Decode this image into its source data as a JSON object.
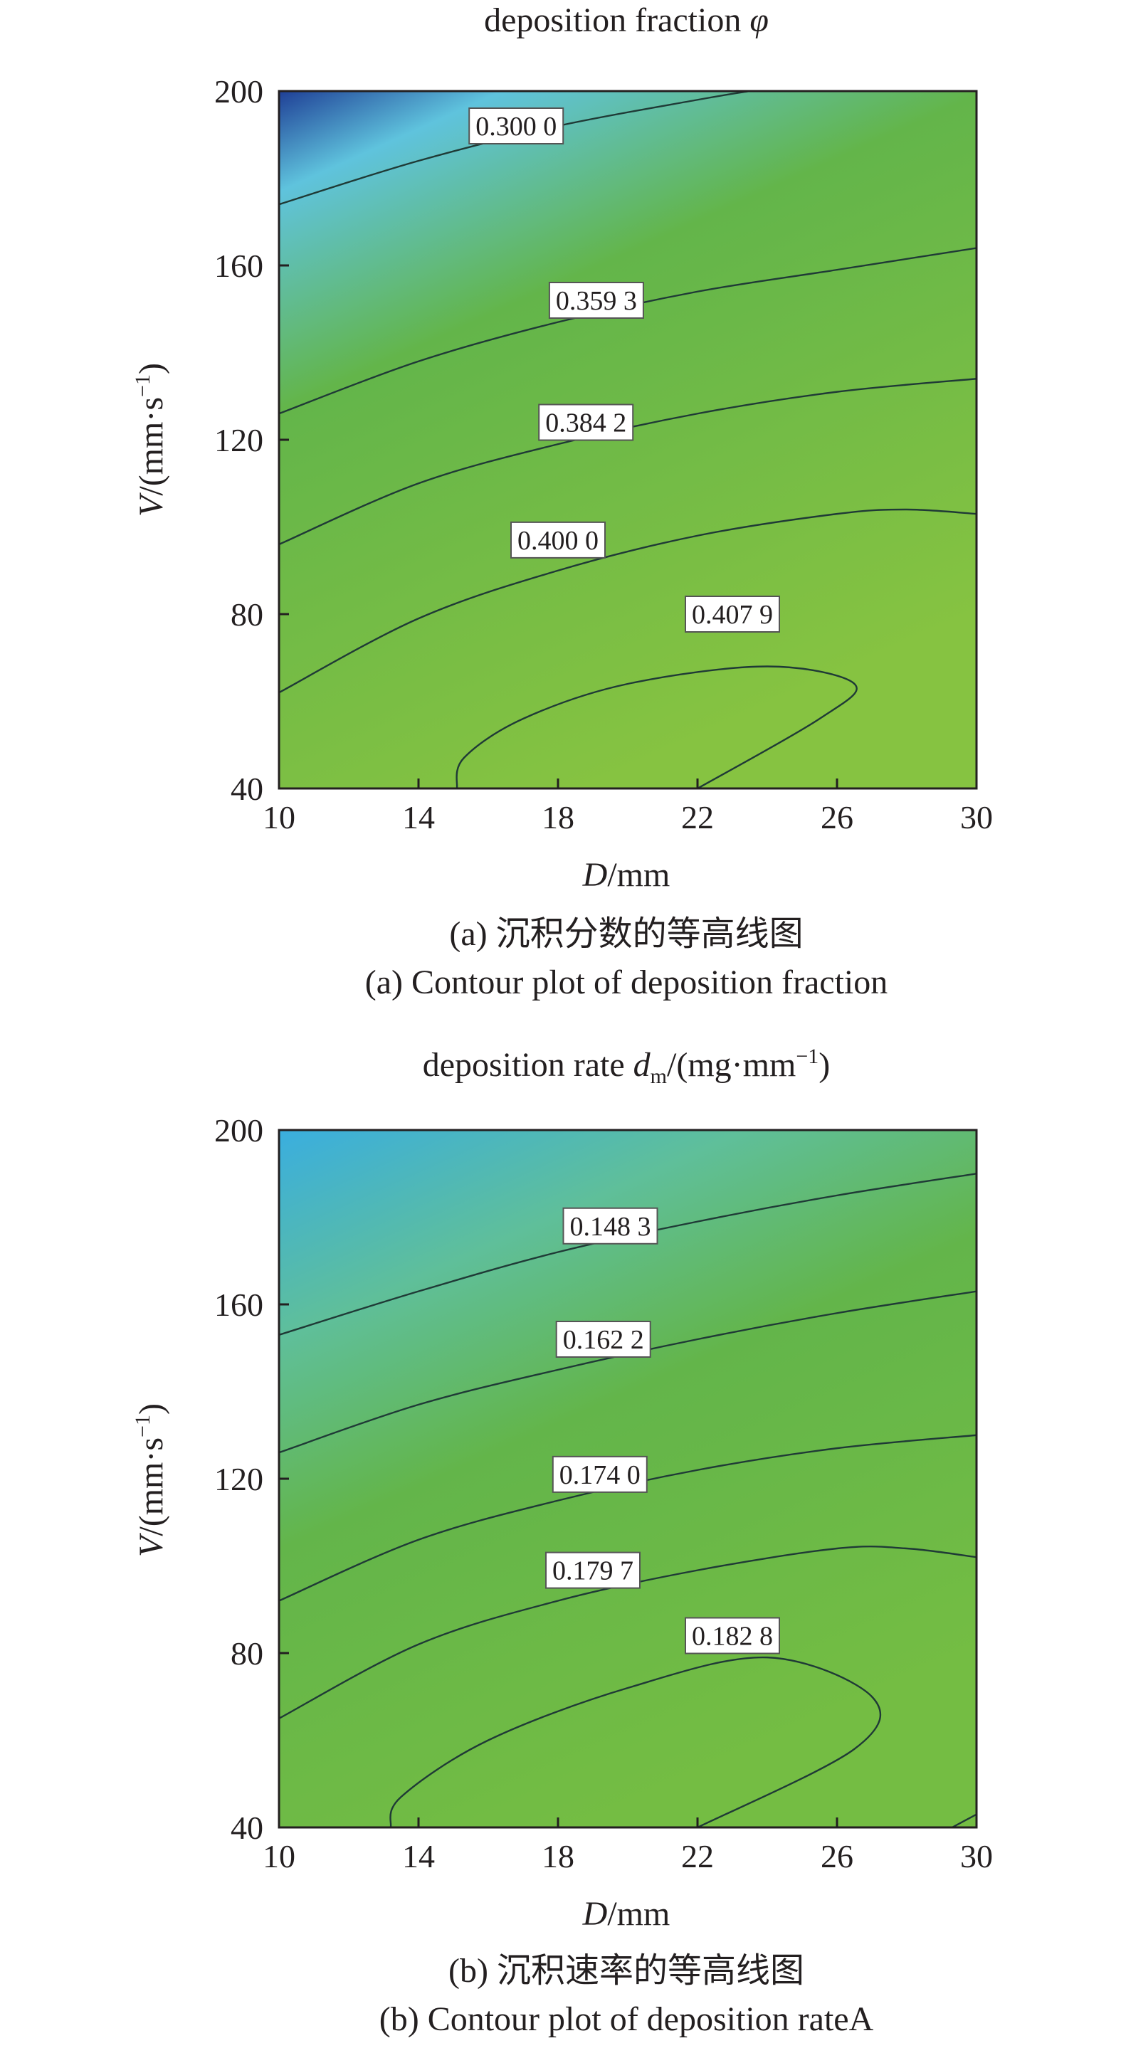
{
  "chart_data": [
    {
      "type": "contour",
      "title": "deposition fraction",
      "title_symbol": "φ",
      "xlabel_italic": "D",
      "xlabel_unit": "/mm",
      "ylabel_italic": "V",
      "ylabel_unit": "/(mm·s",
      "ylabel_sup": "−1",
      "ylabel_close": ")",
      "xlim": [
        10,
        30
      ],
      "ylim": [
        40,
        200
      ],
      "xticks": [
        "10",
        "14",
        "18",
        "22",
        "26",
        "30"
      ],
      "yticks": [
        "40",
        "80",
        "120",
        "160",
        "200"
      ],
      "caption_cn": "(a) 沉积分数的等高线图",
      "caption_en": "(a) Contour plot of deposition fraction",
      "colormap": [
        "#1f3f96",
        "#5fc3dd",
        "#63b54a",
        "#86c341"
      ],
      "contours": [
        {
          "level": "0.300 0",
          "points": [
            [
              10,
              174
            ],
            [
              14,
              184
            ],
            [
              18,
              192
            ],
            [
              22,
              198
            ],
            [
              23.5,
              200
            ]
          ],
          "label_at": [
            16.8,
            192
          ]
        },
        {
          "level": "0.359 3",
          "points": [
            [
              10,
              126
            ],
            [
              14,
              138
            ],
            [
              18,
              147
            ],
            [
              22,
              154
            ],
            [
              26,
              159
            ],
            [
              30,
              164
            ]
          ],
          "label_at": [
            19.1,
            152
          ]
        },
        {
          "level": "0.384 2",
          "points": [
            [
              10,
              96
            ],
            [
              14,
              110
            ],
            [
              18,
              119
            ],
            [
              22,
              126
            ],
            [
              26,
              131
            ],
            [
              30,
              134
            ]
          ],
          "label_at": [
            18.8,
            124
          ]
        },
        {
          "level": "0.400 0",
          "points": [
            [
              10,
              62
            ],
            [
              14,
              79
            ],
            [
              18,
              90
            ],
            [
              22,
              98
            ],
            [
              26,
              103
            ],
            [
              28,
              104
            ],
            [
              30,
              103
            ]
          ],
          "label_at": [
            18.0,
            97
          ]
        },
        {
          "level": "0.407 9",
          "points": [
            [
              15.1,
              40
            ],
            [
              15.3,
              47
            ],
            [
              17,
              56
            ],
            [
              20,
              64
            ],
            [
              24,
              68
            ],
            [
              26.5,
              64
            ],
            [
              25.5,
              56
            ],
            [
              22,
              40
            ]
          ],
          "label_at": [
            23.0,
            80
          ]
        }
      ]
    },
    {
      "type": "contour",
      "title": "deposition rate ",
      "title_symbol": "d",
      "title_sub": "m",
      "title_unit": "/(mg·mm",
      "title_sup": "−1",
      "title_close": ")",
      "xlabel_italic": "D",
      "xlabel_unit": "/mm",
      "ylabel_italic": "V",
      "ylabel_unit": "/(mm·s",
      "ylabel_sup": "−1",
      "ylabel_close": ")",
      "xlim": [
        10,
        30
      ],
      "ylim": [
        40,
        200
      ],
      "xticks": [
        "10",
        "14",
        "18",
        "22",
        "26",
        "30"
      ],
      "yticks": [
        "40",
        "80",
        "120",
        "160",
        "200"
      ],
      "caption_cn": "(b) 沉积速率的等高线图",
      "caption_en": "(b) Contour plot of deposition rateA",
      "colormap": [
        "#3aaedf",
        "#5fbf9a",
        "#63b54a",
        "#74bd43"
      ],
      "contours": [
        {
          "level": "0.148 3",
          "points": [
            [
              10,
              153
            ],
            [
              14,
              163
            ],
            [
              18,
              172
            ],
            [
              22,
              179
            ],
            [
              26,
              185
            ],
            [
              30,
              190
            ]
          ],
          "label_at": [
            19.5,
            178
          ]
        },
        {
          "level": "0.162 2",
          "points": [
            [
              10,
              126
            ],
            [
              14,
              137
            ],
            [
              18,
              145
            ],
            [
              22,
              152
            ],
            [
              26,
              158
            ],
            [
              30,
              163
            ]
          ],
          "label_at": [
            19.3,
            152
          ]
        },
        {
          "level": "0.174 0",
          "points": [
            [
              10,
              92
            ],
            [
              14,
              106
            ],
            [
              18,
              115
            ],
            [
              22,
              122
            ],
            [
              26,
              127
            ],
            [
              30,
              130
            ]
          ],
          "label_at": [
            19.2,
            121
          ]
        },
        {
          "level": "0.179 7",
          "points": [
            [
              10,
              65
            ],
            [
              14,
              82
            ],
            [
              18,
              92
            ],
            [
              22,
              99
            ],
            [
              26,
              104
            ],
            [
              28,
              104
            ],
            [
              30,
              102
            ]
          ],
          "label_at": [
            19.0,
            99
          ]
        },
        {
          "level": "0.182 8",
          "points": [
            [
              13.2,
              40
            ],
            [
              13.5,
              47
            ],
            [
              16,
              60
            ],
            [
              20,
              72
            ],
            [
              24,
              79
            ],
            [
              27,
              70
            ],
            [
              26.5,
              58
            ],
            [
              22,
              40
            ]
          ],
          "label_at": [
            23.0,
            84
          ]
        },
        {
          "level": "",
          "points": [
            [
              29.3,
              40
            ],
            [
              30,
              43
            ]
          ],
          "label_at": null
        }
      ]
    }
  ]
}
